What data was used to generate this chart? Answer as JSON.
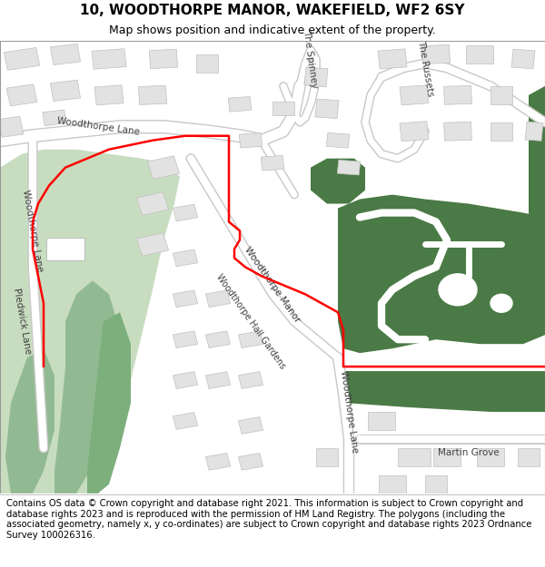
{
  "title": "10, WOODTHORPE MANOR, WAKEFIELD, WF2 6SY",
  "subtitle": "Map shows position and indicative extent of the property.",
  "footer": "Contains OS data © Crown copyright and database right 2021. This information is subject to Crown copyright and database rights 2023 and is reproduced with the permission of HM Land Registry. The polygons (including the associated geometry, namely x, y co-ordinates) are subject to Crown copyright and database rights 2023 Ordnance Survey 100026316.",
  "bg_color": "#ffffff",
  "map_bg": "#f0f0f0",
  "road_color": "#ffffff",
  "road_stroke": "#c8c8c8",
  "building_color": "#e2e2e2",
  "building_stroke": "#c0c0c0",
  "green_light": "#c8ddc0",
  "green_dark": "#4a7a45",
  "red_boundary": "#ff0000",
  "title_fontsize": 11,
  "subtitle_fontsize": 9,
  "footer_fontsize": 7.2
}
